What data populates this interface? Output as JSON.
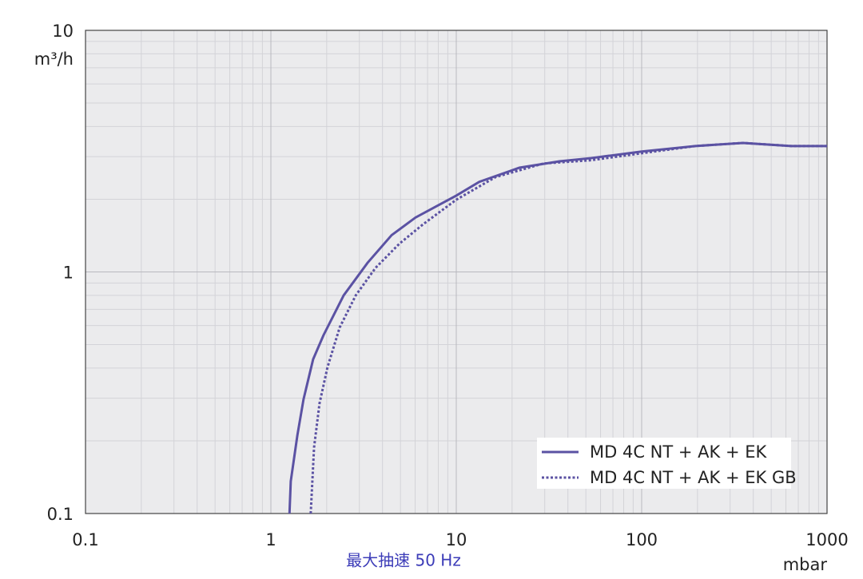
{
  "chart_data": {
    "type": "line",
    "subtitle": "最大抽速 50 Hz",
    "x_label": "mbar",
    "y_label": "m³/h",
    "xscale": "log",
    "yscale": "log",
    "xlim": [
      0.1,
      1000
    ],
    "ylim": [
      0.1,
      10
    ],
    "xticks": [
      0.1,
      1,
      10,
      100,
      1000
    ],
    "yticks": [
      0.1,
      1,
      10
    ],
    "grid": true,
    "legend": "lower right",
    "series": [
      {
        "name": "MD 4C NT + AK + EK",
        "color": "#5b52a3",
        "style": "solid",
        "x": [
          1.26,
          1.28,
          1.39,
          1.5,
          1.69,
          1.92,
          2.47,
          3.32,
          4.48,
          6.03,
          10,
          13.3,
          21.9,
          36,
          53.5,
          100,
          195,
          352,
          640,
          1000
        ],
        "values": [
          0.1,
          0.136,
          0.211,
          0.297,
          0.435,
          0.546,
          0.8,
          1.09,
          1.42,
          1.68,
          2.07,
          2.36,
          2.7,
          2.87,
          2.96,
          3.15,
          3.32,
          3.42,
          3.32,
          3.32
        ]
      },
      {
        "name": "MD 4C NT + AK + EK GB",
        "color": "#5b52a3",
        "style": "dotted",
        "x": [
          1.64,
          1.71,
          1.83,
          2.02,
          2.35,
          2.87,
          3.67,
          4.94,
          6.66,
          10,
          16.3,
          29.5,
          53.5,
          100,
          195,
          352,
          640,
          1000
        ],
        "values": [
          0.1,
          0.188,
          0.286,
          0.403,
          0.589,
          0.8,
          1.04,
          1.31,
          1.58,
          1.99,
          2.47,
          2.81,
          2.9,
          3.1,
          3.32,
          3.42,
          3.32,
          3.32
        ]
      }
    ]
  }
}
